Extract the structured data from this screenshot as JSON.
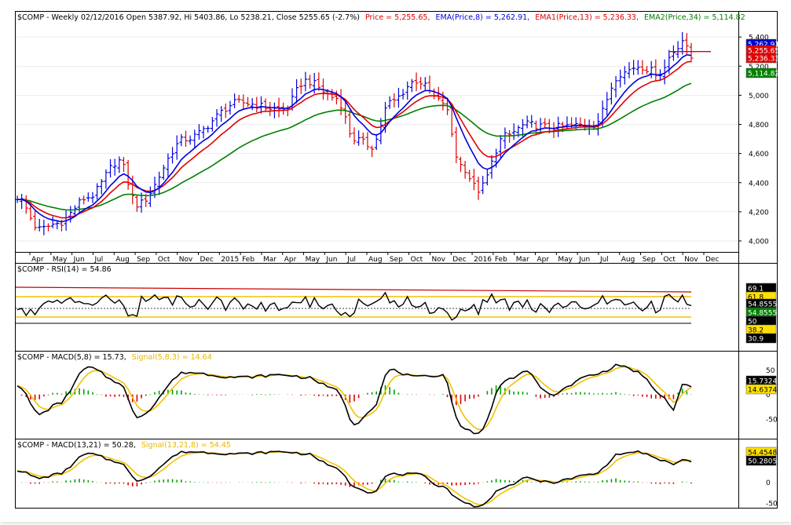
{
  "colors": {
    "price_red": "#e00000",
    "ema8_blue": "#0000e0",
    "ema13_red": "#e00000",
    "ema34_green": "#008000",
    "rsi_line": "#000000",
    "level_yellow": "#f2c200",
    "macd_line": "#000000",
    "signal_line": "#f2c200",
    "hist_pos": "#00a000",
    "hist_neg": "#e00000",
    "tag_red": "#e00000",
    "tag_blue": "#0000cc",
    "tag_green": "#008000",
    "tag_black": "#000000",
    "tag_yellow": "#ffe000"
  },
  "header": {
    "prefix": "$COMP - Weekly 02/12/2016 Open 5387.92, Hi 5403.86, Lo 5238.21, Close 5255.65 (-2.7%)",
    "price": "Price = 5,255.65,",
    "ema8": "EMA(Price,8) = 5,262.91,",
    "ema13": "EMA1(Price,13) = 5,236.33,",
    "ema34": "EMA2(Price,34) = 5,114.82"
  },
  "rsi_title": {
    "prefix": "$COMP - RSI(14) = 54.86"
  },
  "macd1_title": {
    "prefix": "$COMP - MACD(5,8) = 15.73,",
    "signal": "Signal(5,8,3) = 14.64"
  },
  "macd2_title": {
    "prefix": "$COMP - MACD(13,21) = 50.28,",
    "signal": "Signal(13,21,8) = 54.45"
  },
  "chart_data": [
    {
      "type": "ohlc",
      "title": "$COMP - Weekly",
      "x_tick_labels": [
        "Apr",
        "May",
        "Jun",
        "Jul",
        "Aug",
        "Sep",
        "Oct",
        "Nov",
        "Dec",
        "2015",
        "Feb",
        "Mar",
        "Apr",
        "May",
        "Jun",
        "Jul",
        "Aug",
        "Sep",
        "Oct",
        "Nov",
        "Dec",
        "2016",
        "Feb",
        "Mar",
        "Apr",
        "May",
        "Jun",
        "Jul",
        "Aug",
        "Sep",
        "Oct",
        "Nov",
        "Dec"
      ],
      "y_ticks": [
        4000,
        4200,
        4400,
        4600,
        4800,
        5000,
        5200,
        5400
      ],
      "y_tick_labels": [
        "4,000",
        "4,200",
        "4,400",
        "4,600",
        "4,800",
        "5,000",
        "5,200",
        "5,400"
      ],
      "ylim": [
        3930,
        5460
      ],
      "price_anchors": [
        [
          0,
          4300
        ],
        [
          5,
          4080
        ],
        [
          9,
          4120
        ],
        [
          16,
          4300
        ],
        [
          23,
          4550
        ],
        [
          27,
          4250
        ],
        [
          38,
          4700
        ],
        [
          50,
          4950
        ],
        [
          60,
          4900
        ],
        [
          65,
          5100
        ],
        [
          72,
          4980
        ],
        [
          76,
          4700
        ],
        [
          80,
          4650
        ],
        [
          84,
          4950
        ],
        [
          90,
          5100
        ],
        [
          96,
          4950
        ],
        [
          100,
          4520
        ],
        [
          104,
          4350
        ],
        [
          110,
          4720
        ],
        [
          115,
          4800
        ],
        [
          120,
          4780
        ],
        [
          130,
          4800
        ],
        [
          136,
          5150
        ],
        [
          140,
          5200
        ],
        [
          145,
          5150
        ],
        [
          148,
          5300
        ],
        [
          150,
          5380
        ],
        [
          152,
          5256
        ]
      ],
      "series": [
        {
          "name": "EMA(Price,8)",
          "last": 5262.91
        },
        {
          "name": "EMA1(Price,13)",
          "last": 5236.33
        },
        {
          "name": "EMA2(Price,34)",
          "last": 5114.82
        }
      ],
      "tags": [
        {
          "text": "5,262.91",
          "value": 5262.91,
          "color": "tag_blue"
        },
        {
          "text": "5,255.65",
          "value": 5255.65,
          "color": "tag_red"
        },
        {
          "text": "5,236.33",
          "value": 5236.33,
          "color": "tag_red"
        },
        {
          "text": "5,114.82",
          "value": 5114.82,
          "color": "tag_green"
        }
      ]
    },
    {
      "type": "line",
      "title": "$COMP - RSI(14) = 54.86",
      "ylim": [
        20,
        80
      ],
      "y_ticks": [
        70,
        30
      ],
      "levels": [
        61.8,
        38.2
      ],
      "dotted_level": 50,
      "last": 54.86,
      "tags": [
        {
          "text": "69.1",
          "value": 69.1,
          "color": "tag_black"
        },
        {
          "text": "61.8",
          "value": 61.8,
          "color": "tag_yellow"
        },
        {
          "text": "54.8555",
          "value": 54.8555,
          "color": "tag_black"
        },
        {
          "text": "54.8555",
          "value": 54.8555,
          "color": "tag_green"
        },
        {
          "text": "50",
          "value": 50,
          "color": "tag_black"
        },
        {
          "text": "38.2",
          "value": 38.2,
          "color": "tag_yellow"
        },
        {
          "text": "30.9",
          "value": 30.9,
          "color": "tag_black"
        }
      ]
    },
    {
      "type": "line",
      "title": "$COMP - MACD(5,8)",
      "ylim": [
        -85,
        65
      ],
      "y_ticks": [
        50,
        0,
        -50
      ],
      "series": [
        {
          "name": "MACD(5,8)",
          "last": 15.73
        },
        {
          "name": "Signal(5,8,3)",
          "last": 14.64
        }
      ],
      "anchors": [
        [
          0,
          20
        ],
        [
          5,
          -40
        ],
        [
          9,
          -20
        ],
        [
          16,
          55
        ],
        [
          23,
          25
        ],
        [
          27,
          -45
        ],
        [
          38,
          45
        ],
        [
          50,
          35
        ],
        [
          60,
          40
        ],
        [
          65,
          35
        ],
        [
          72,
          10
        ],
        [
          76,
          -60
        ],
        [
          80,
          -30
        ],
        [
          84,
          50
        ],
        [
          90,
          35
        ],
        [
          96,
          40
        ],
        [
          100,
          -65
        ],
        [
          104,
          -80
        ],
        [
          110,
          30
        ],
        [
          115,
          45
        ],
        [
          120,
          0
        ],
        [
          130,
          40
        ],
        [
          136,
          60
        ],
        [
          140,
          45
        ],
        [
          145,
          0
        ],
        [
          148,
          -30
        ],
        [
          150,
          20
        ],
        [
          152,
          15.73
        ]
      ],
      "tags": [
        {
          "text": "15.7324",
          "value": 15.7324,
          "color": "tag_black"
        },
        {
          "text": "14.6374",
          "value": 14.6374,
          "color": "tag_yellow"
        }
      ]
    },
    {
      "type": "line",
      "title": "$COMP - MACD(13,21)",
      "ylim": [
        -60,
        82
      ],
      "y_ticks": [
        50,
        0,
        -50
      ],
      "series": [
        {
          "name": "MACD(13,21)",
          "last": 50.28
        },
        {
          "name": "Signal(13,21,8)",
          "last": 54.45
        }
      ],
      "anchors": [
        [
          0,
          30
        ],
        [
          5,
          10
        ],
        [
          9,
          20
        ],
        [
          16,
          70
        ],
        [
          23,
          50
        ],
        [
          27,
          5
        ],
        [
          38,
          75
        ],
        [
          50,
          70
        ],
        [
          60,
          75
        ],
        [
          65,
          70
        ],
        [
          72,
          35
        ],
        [
          76,
          -10
        ],
        [
          80,
          -25
        ],
        [
          84,
          20
        ],
        [
          90,
          20
        ],
        [
          96,
          -10
        ],
        [
          100,
          -45
        ],
        [
          104,
          -60
        ],
        [
          110,
          -10
        ],
        [
          115,
          10
        ],
        [
          120,
          0
        ],
        [
          130,
          20
        ],
        [
          136,
          70
        ],
        [
          140,
          75
        ],
        [
          145,
          55
        ],
        [
          148,
          45
        ],
        [
          150,
          55
        ],
        [
          152,
          50.28
        ]
      ],
      "tags": [
        {
          "text": "54.4548",
          "value": 54.4548,
          "color": "tag_yellow"
        },
        {
          "text": "50.2805",
          "value": 50.2805,
          "color": "tag_black"
        }
      ]
    }
  ]
}
